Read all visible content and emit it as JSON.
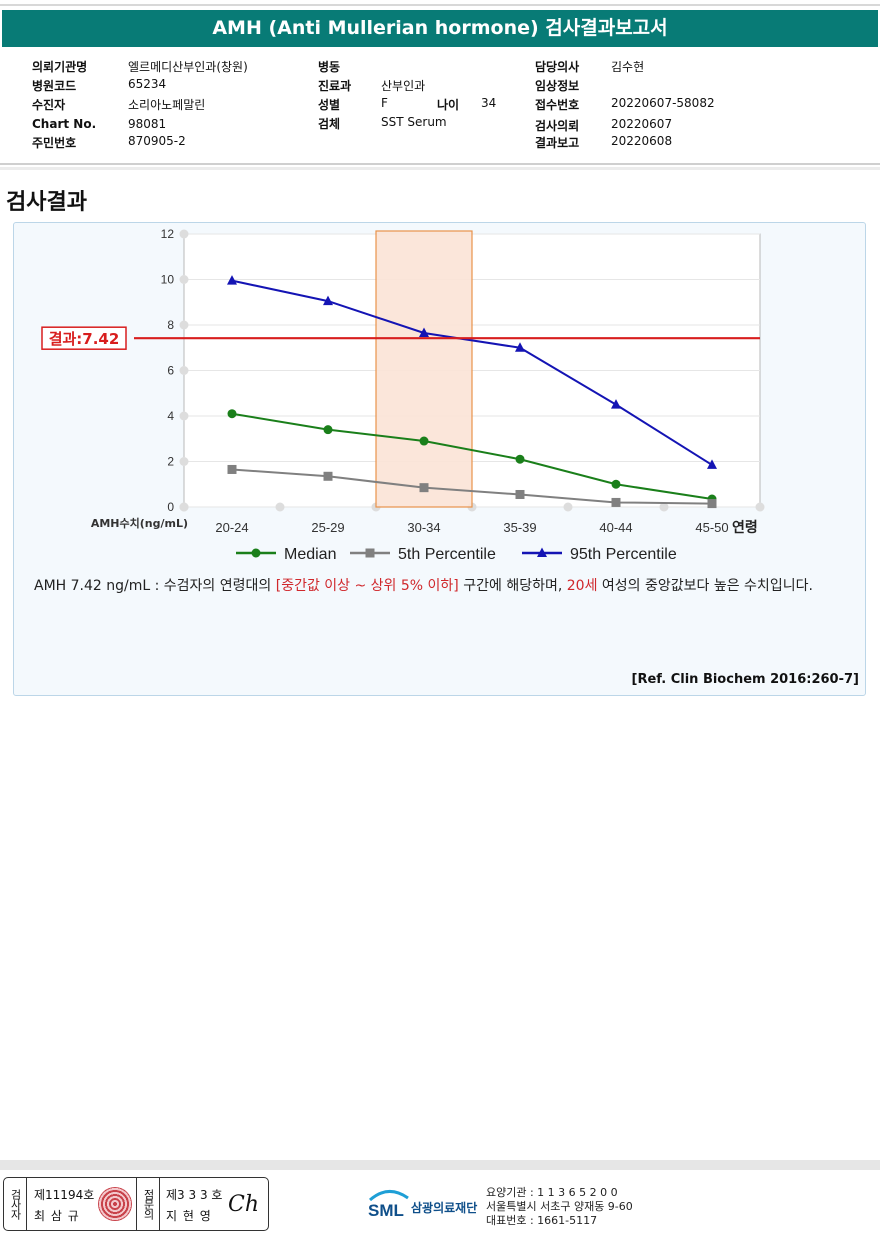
{
  "report": {
    "title": "AMH (Anti Mullerian hormone) 검사결과보고서",
    "section_title": "검사결과"
  },
  "info": {
    "col1": [
      {
        "label": "의뢰기관명",
        "value": "엘르메디산부인과(창원)"
      },
      {
        "label": "병원코드",
        "value": "65234"
      },
      {
        "label": "수진자",
        "value": "소리아노페말린"
      },
      {
        "label": "Chart No.",
        "value": "98081"
      },
      {
        "label": "주민번호",
        "value": "870905-2"
      }
    ],
    "col2": [
      {
        "label": "병동",
        "value": ""
      },
      {
        "label": "진료과",
        "value": "산부인과"
      },
      {
        "label": "성별",
        "value": "F"
      },
      {
        "label": "검체",
        "value": "SST Serum"
      }
    ],
    "age": {
      "label": "나이",
      "value": "34"
    },
    "col3": [
      {
        "label": "담당의사",
        "value": "김수현"
      },
      {
        "label": "임상정보",
        "value": ""
      },
      {
        "label": "접수번호",
        "value": "20220607-58082"
      },
      {
        "label": "검사의뢰",
        "value": "20220607"
      },
      {
        "label": "결과보고",
        "value": "20220608"
      }
    ]
  },
  "chart_data": {
    "type": "line",
    "categories": [
      "20-24",
      "25-29",
      "30-34",
      "35-39",
      "40-44",
      "45-50"
    ],
    "ylabel": "AMH수치(ng/mL)",
    "xlabel": "연령",
    "ylim": [
      0,
      12
    ],
    "yticks": [
      "0",
      "2",
      "4",
      "6",
      "8",
      "10",
      "12"
    ],
    "grid": true,
    "legend_position": "bottom",
    "highlight_category": "30-34",
    "result_value": 7.42,
    "result_label": "결과:7.42",
    "series": [
      {
        "name": "Median",
        "values": [
          4.1,
          3.4,
          2.9,
          2.1,
          1.0,
          0.35
        ],
        "color": "#1a7f1a",
        "marker": "circle"
      },
      {
        "name": "5th Percentile",
        "values": [
          1.65,
          1.35,
          0.85,
          0.55,
          0.2,
          0.15
        ],
        "color": "#808080",
        "marker": "square"
      },
      {
        "name": "95th Percentile",
        "values": [
          9.95,
          9.05,
          7.65,
          7.0,
          4.5,
          1.85
        ],
        "color": "#1414b4",
        "marker": "triangle"
      }
    ]
  },
  "comment": {
    "part1": "AMH  7.42 ng/mL : 수검자의 연령대의 ",
    "highlight1": "[중간값 이상 ~ 상위 5% 이하]",
    "part2": "  구간에 해당하며, ",
    "highlight2": "20세",
    "part3": " 여성의 중앙값보다 높은 수치입니다.",
    "reference": "[Ref. Clin Biochem 2016:260-7]"
  },
  "footer": {
    "examiner_label": "검사자",
    "examiner_no": "제11194호",
    "examiner_name": "최 삼 규",
    "reviewer_label": "점문의",
    "reviewer_no": "제3 3 3 호",
    "reviewer_name": "지 현 영",
    "signature": "Ch",
    "logo_text": "SML",
    "foundation_name": "삼광의료재단",
    "institution_code": "요양기관 : 1 1 3 6 5 2 0 0",
    "address": "서울특별시 서초구 양재동 9-60",
    "phone": "대표번호 : 1661-5117"
  },
  "colors": {
    "header_bg": "#087b76",
    "result_line": "#d81e1e",
    "highlight_fill": "#fbe3d6",
    "highlight_border": "#e8924a",
    "red_text": "#d0282c"
  }
}
